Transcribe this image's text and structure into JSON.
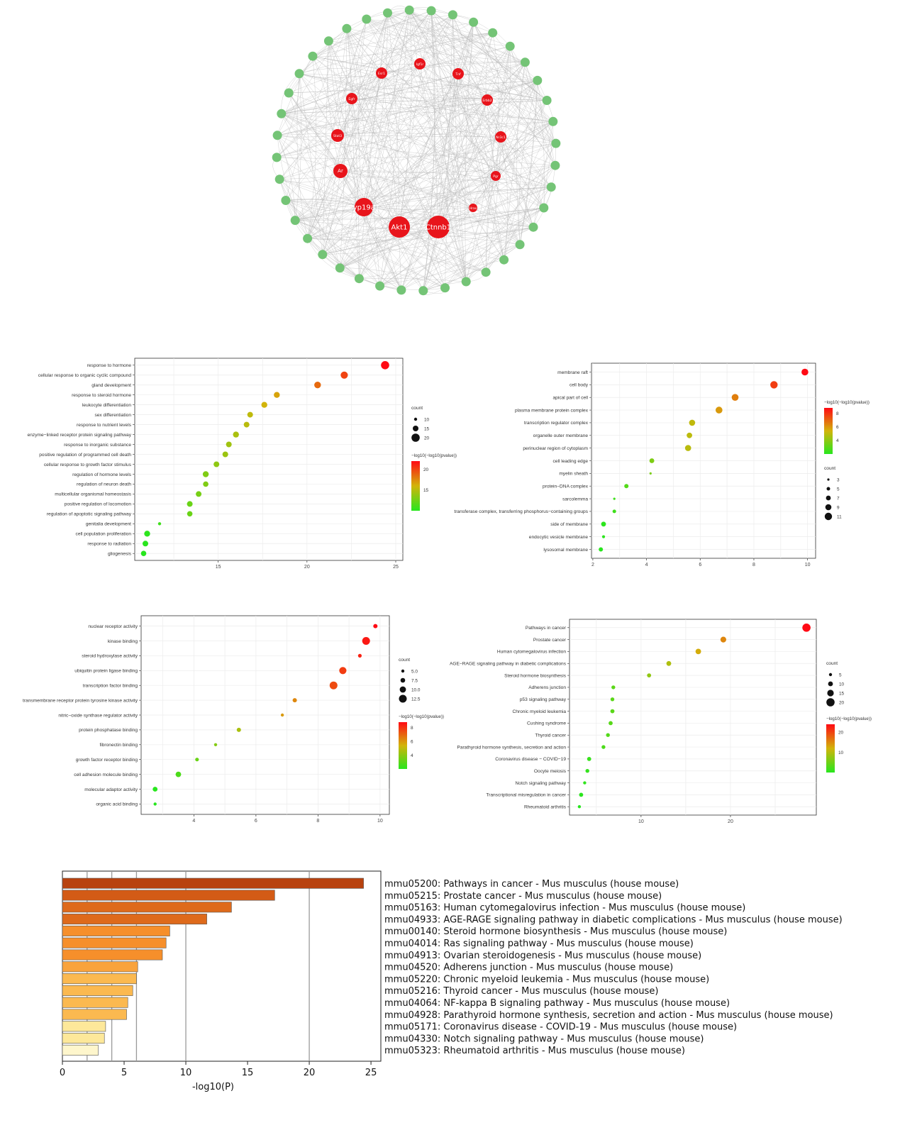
{
  "network": {
    "hub_genes": [
      "Akt1",
      "Ctnnb1",
      "Cyp19a1",
      "Ar",
      "Stat3",
      "Egfr",
      "Esr1",
      "Igf1r",
      "Tnf",
      "Erbb2",
      "Nr3c1",
      "Pgr",
      "Hras"
    ],
    "outer_node_count": 40,
    "colors": {
      "hub": "#e8141b",
      "outer": "#74c476",
      "edge": "#b5b5b5"
    }
  },
  "chart_data": [
    {
      "type": "scatter",
      "panel": "go_biological_process",
      "categories": [
        "response to hormone",
        "cellular response to organic cyclic compound",
        "gland development",
        "response to steroid hormone",
        "leukocyte differentiation",
        "sex differentiation",
        "response to nutrient levels",
        "enzyme−linked receptor protein signaling pathway",
        "response to inorganic substance",
        "positive regulation of programmed cell death",
        "cellular response to growth factor stimulus",
        "regulation of hormone levels",
        "regulation of neuron death",
        "multicellular organismal homeostasis",
        "positive regulation of locomotion",
        "regulation of apoptotic signaling pathway",
        "genitalia development",
        "cell population proliferation",
        "response to radiation",
        "gliogenesis"
      ],
      "x": [
        24.4,
        22.1,
        20.6,
        18.3,
        17.6,
        16.8,
        16.6,
        16.0,
        15.6,
        15.4,
        14.9,
        14.3,
        14.3,
        13.9,
        13.4,
        13.4,
        11.7,
        11.0,
        10.9,
        10.8
      ],
      "count": [
        21,
        18,
        16,
        14,
        14,
        13,
        13,
        14,
        13,
        13,
        13,
        14,
        12,
        13,
        13,
        12,
        5,
        14,
        13,
        12
      ],
      "xticks": [
        15,
        20,
        25
      ],
      "xlim": [
        10.3,
        25.4
      ],
      "legend": {
        "count_title": "count",
        "count_values": [
          "10",
          "15",
          "20"
        ],
        "color_title": "−log10(−log10(pvalue))",
        "color_ticks": [
          "15",
          "20"
        ]
      }
    },
    {
      "type": "scatter",
      "panel": "go_cellular_component",
      "categories": [
        "membrane raft",
        "cell body",
        "apical part of cell",
        "plasma membrane protein complex",
        "transcription regulator complex",
        "organelle outer membrane",
        "perinuclear region of cytoplasm",
        "cell leading edge",
        "myelin sheath",
        "protein−DNA complex",
        "sarcolemma",
        "transferase complex, transferring phosphorus−containing groups",
        "side of membrane",
        "endocytic vesicle membrane",
        "lysosomal membrane"
      ],
      "x": [
        9.9,
        8.75,
        7.3,
        6.7,
        5.7,
        5.6,
        5.55,
        4.2,
        4.15,
        3.25,
        2.8,
        2.8,
        2.4,
        2.4,
        2.3
      ],
      "count": [
        10,
        11,
        10,
        10,
        9,
        8,
        9,
        7,
        3,
        6,
        3,
        5,
        7,
        4,
        6
      ],
      "xticks": [
        2,
        4,
        6,
        8,
        10
      ],
      "xlim": [
        1.95,
        10.3
      ],
      "legend": {
        "count_title": "count",
        "count_values": [
          "3",
          "5",
          "7",
          "9",
          "11"
        ],
        "color_title": "−log10(−log10(pvalue))",
        "color_ticks": [
          "4",
          "6",
          "8"
        ]
      }
    },
    {
      "type": "scatter",
      "panel": "go_molecular_function",
      "categories": [
        "nuclear receptor activity",
        "kinase binding",
        "steroid hydroxylase activity",
        "ubiquitin protein ligase binding",
        "transcription factor binding",
        "transmembrane receptor protein tyrosine kinase activity",
        "nitric−oxide synthase regulator activity",
        "protein phosphatase binding",
        "fibronectin binding",
        "growth factor receptor binding",
        "cell adhesion molecule binding",
        "molecular adaptor activity",
        "organic acid binding"
      ],
      "x": [
        9.85,
        9.55,
        9.35,
        8.8,
        8.5,
        7.25,
        6.85,
        5.45,
        4.7,
        4.1,
        3.5,
        2.75,
        2.75
      ],
      "count": [
        6,
        12,
        5,
        11,
        12,
        6,
        4,
        6,
        4,
        5,
        8,
        7,
        4
      ],
      "xticks": [
        4,
        6,
        8,
        10
      ],
      "xlim": [
        2.3,
        10.3
      ],
      "legend": {
        "count_title": "count",
        "count_values": [
          "5.0",
          "7.5",
          "10.0",
          "12.5"
        ],
        "color_title": "−log10(−log10(pvalue))",
        "color_ticks": [
          "4",
          "6",
          "8"
        ]
      }
    },
    {
      "type": "scatter",
      "panel": "kegg_pathway",
      "categories": [
        "Pathways in cancer",
        "Prostate cancer",
        "Human cytomegalovirus infection",
        "AGE−RAGE signaling pathway in diabetic complications",
        "Steroid hormone biosynthesis",
        "Adherens junction",
        "p53 signaling pathway",
        "Chronic myeloid leukemia",
        "Cushing syndrome",
        "Thyroid cancer",
        "Parathyroid hormone synthesis, secretion and action",
        "Coronavirus disease − COVID−19",
        "Oocyte meiosis",
        "Notch signaling pathway",
        "Transcriptional misregulation in cancer",
        "Rheumatoid arthritis"
      ],
      "x": [
        28.5,
        19.2,
        16.4,
        13.1,
        10.9,
        6.9,
        6.8,
        6.8,
        6.6,
        6.3,
        5.8,
        4.2,
        4.0,
        3.7,
        3.3,
        3.1
      ],
      "count": [
        20,
        13,
        12,
        10,
        8,
        7,
        7,
        8,
        8,
        7,
        7,
        8,
        7,
        5,
        8,
        5
      ],
      "xticks": [
        10,
        20
      ],
      "xlim": [
        2.0,
        29.6
      ],
      "legend": {
        "count_title": "count",
        "count_values": [
          "5",
          "10",
          "15",
          "20"
        ],
        "color_title": "−log10(−log10(pvalue))",
        "color_ticks": [
          "10",
          "20"
        ]
      }
    },
    {
      "type": "bar",
      "panel": "metascape_bar",
      "orientation": "horizontal",
      "categories": [
        "mmu05200: Pathways in cancer - Mus musculus (house mouse)",
        "mmu05215: Prostate cancer - Mus musculus (house mouse)",
        "mmu05163: Human cytomegalovirus infection - Mus musculus (house mouse)",
        "mmu04933: AGE-RAGE signaling pathway in diabetic complications - Mus musculus (house mouse)",
        "mmu00140: Steroid hormone biosynthesis - Mus musculus (house mouse)",
        "mmu04014: Ras signaling pathway - Mus musculus (house mouse)",
        "mmu04913: Ovarian steroidogenesis - Mus musculus (house mouse)",
        "mmu04520: Adherens junction - Mus musculus (house mouse)",
        "mmu05220: Chronic myeloid leukemia - Mus musculus (house mouse)",
        "mmu05216: Thyroid cancer - Mus musculus (house mouse)",
        "mmu04064: NF-kappa B signaling pathway - Mus musculus (house mouse)",
        "mmu04928: Parathyroid hormone synthesis, secretion and action - Mus musculus (house mouse)",
        "mmu05171: Coronavirus disease - COVID-19 - Mus musculus (house mouse)",
        "mmu04330: Notch signaling pathway - Mus musculus (house mouse)",
        "mmu05323: Rheumatoid arthritis - Mus musculus (house mouse)"
      ],
      "values": [
        24.4,
        17.2,
        13.7,
        11.7,
        8.7,
        8.4,
        8.1,
        6.1,
        6.0,
        5.7,
        5.3,
        5.2,
        3.5,
        3.4,
        2.9
      ],
      "colors": [
        "#b8420f",
        "#d35b16",
        "#de6a1b",
        "#de6a1b",
        "#f68f2b",
        "#f68f2b",
        "#f68f2b",
        "#f9a33c",
        "#fbb950",
        "#fbb950",
        "#fbb950",
        "#fbb950",
        "#fde89a",
        "#fde89a",
        "#fef6cc"
      ],
      "xlabel": "-log10(P)",
      "xticks": [
        0,
        5,
        10,
        15,
        20,
        25
      ],
      "gridlines": [
        2,
        4,
        6,
        10,
        20
      ],
      "xlim": [
        0,
        25.8
      ]
    }
  ]
}
